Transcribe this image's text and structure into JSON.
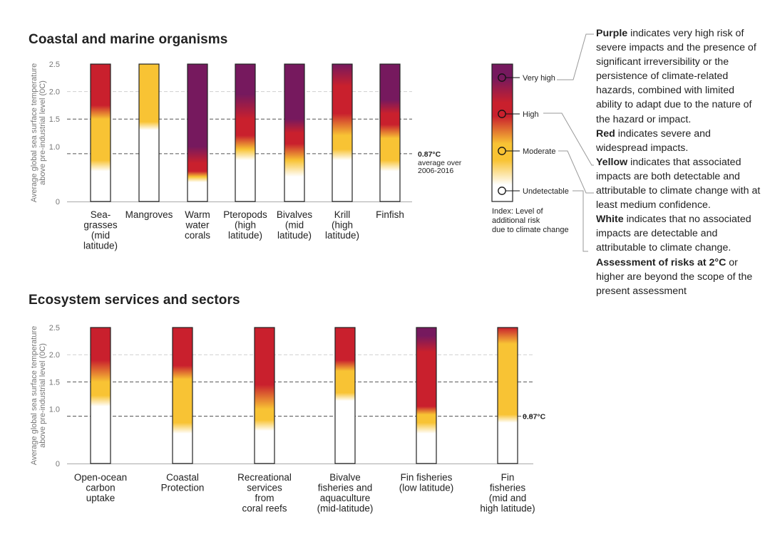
{
  "chart_data": [
    {
      "type": "bar",
      "title": "Coastal and marine organisms",
      "ylabel": [
        "Average global sea surface temperature",
        "above pre-industrial level (0C)"
      ],
      "ylim": [
        0,
        2.5
      ],
      "yticks": [
        "0",
        "1.0",
        "1.5",
        "2.0",
        "2.5"
      ],
      "reference_lines": [
        {
          "y": 0.87,
          "label": "0.87°C",
          "note": [
            "average over",
            "2006-2016"
          ]
        },
        {
          "y": 1.5,
          "label": ""
        },
        {
          "y": 2.0,
          "label": ""
        }
      ],
      "categories": [
        {
          "label": [
            "Sea-",
            "grasses",
            "(mid",
            "latitude)"
          ],
          "stops": [
            [
              0.0,
              "white"
            ],
            [
              0.55,
              "white"
            ],
            [
              0.75,
              "yellow"
            ],
            [
              1.5,
              "yellow"
            ],
            [
              1.75,
              "red"
            ],
            [
              2.5,
              "red"
            ]
          ]
        },
        {
          "label": [
            "Mangroves"
          ],
          "stops": [
            [
              0.0,
              "white"
            ],
            [
              1.3,
              "white"
            ],
            [
              1.45,
              "yellow"
            ],
            [
              2.5,
              "yellow"
            ]
          ]
        },
        {
          "label": [
            "Warm",
            "water",
            "corals"
          ],
          "stops": [
            [
              0.0,
              "white"
            ],
            [
              0.35,
              "white"
            ],
            [
              0.45,
              "yellow"
            ],
            [
              0.55,
              "red"
            ],
            [
              0.7,
              "red"
            ],
            [
              1.0,
              "purple"
            ],
            [
              2.5,
              "purple"
            ]
          ]
        },
        {
          "label": [
            "Pteropods",
            "(high",
            "latitude)"
          ],
          "stops": [
            [
              0.0,
              "white"
            ],
            [
              0.75,
              "white"
            ],
            [
              0.95,
              "yellow"
            ],
            [
              1.2,
              "red"
            ],
            [
              1.5,
              "red"
            ],
            [
              1.95,
              "purple"
            ],
            [
              2.5,
              "purple"
            ]
          ]
        },
        {
          "label": [
            "Bivalves",
            "(mid",
            "latitude)"
          ],
          "stops": [
            [
              0.0,
              "white"
            ],
            [
              0.45,
              "white"
            ],
            [
              0.75,
              "yellow"
            ],
            [
              1.05,
              "red"
            ],
            [
              1.25,
              "red"
            ],
            [
              1.5,
              "purple"
            ],
            [
              2.5,
              "purple"
            ]
          ]
        },
        {
          "label": [
            "Krill",
            "(high",
            "latitude)"
          ],
          "stops": [
            [
              0.0,
              "white"
            ],
            [
              0.75,
              "white"
            ],
            [
              0.95,
              "yellow"
            ],
            [
              1.2,
              "yellow"
            ],
            [
              1.6,
              "red"
            ],
            [
              2.1,
              "red"
            ],
            [
              2.5,
              "purple"
            ]
          ]
        },
        {
          "label": [
            "Finfish"
          ],
          "stops": [
            [
              0.0,
              "white"
            ],
            [
              0.55,
              "white"
            ],
            [
              0.75,
              "yellow"
            ],
            [
              1.15,
              "yellow"
            ],
            [
              1.4,
              "red"
            ],
            [
              1.6,
              "red"
            ],
            [
              1.85,
              "purple"
            ],
            [
              2.5,
              "purple"
            ]
          ]
        }
      ],
      "legend": {
        "levels": [
          "Very high",
          "High",
          "Moderate",
          "Undetectable"
        ],
        "caption": [
          "Index: Level of",
          "additional risk",
          "due to climate change"
        ]
      }
    },
    {
      "type": "bar",
      "title": "Ecosystem services and sectors",
      "ylabel": [
        "Average global sea surface temperature",
        "above pre-industrial level (0C)"
      ],
      "ylim": [
        0,
        2.5
      ],
      "yticks": [
        "0",
        "1.0",
        "1.5",
        "2.0",
        "2.5"
      ],
      "reference_lines": [
        {
          "y": 0.87,
          "label": "0.87°C"
        },
        {
          "y": 1.5,
          "label": ""
        },
        {
          "y": 2.0,
          "label": ""
        }
      ],
      "categories": [
        {
          "label": [
            "Open-ocean",
            "carbon",
            "uptake"
          ],
          "stops": [
            [
              0.0,
              "white"
            ],
            [
              1.05,
              "white"
            ],
            [
              1.25,
              "yellow"
            ],
            [
              1.5,
              "yellow"
            ],
            [
              1.9,
              "red"
            ],
            [
              2.5,
              "red"
            ]
          ]
        },
        {
          "label": [
            "Coastal",
            "Protection"
          ],
          "stops": [
            [
              0.0,
              "white"
            ],
            [
              0.55,
              "white"
            ],
            [
              0.75,
              "yellow"
            ],
            [
              1.55,
              "yellow"
            ],
            [
              1.8,
              "red"
            ],
            [
              2.5,
              "red"
            ]
          ]
        },
        {
          "label": [
            "Recreational",
            "services",
            "from",
            "coral reefs"
          ],
          "stops": [
            [
              0.0,
              "white"
            ],
            [
              0.6,
              "white"
            ],
            [
              0.8,
              "yellow"
            ],
            [
              1.0,
              "yellow"
            ],
            [
              1.45,
              "red"
            ],
            [
              2.5,
              "red"
            ]
          ]
        },
        {
          "label": [
            "Bivalve",
            "fisheries and",
            "aquaculture",
            "(mid-latitude)"
          ],
          "stops": [
            [
              0.0,
              "white"
            ],
            [
              1.15,
              "white"
            ],
            [
              1.3,
              "yellow"
            ],
            [
              1.7,
              "yellow"
            ],
            [
              1.9,
              "red"
            ],
            [
              2.5,
              "red"
            ]
          ]
        },
        {
          "label": [
            "Fin fisheries",
            "(low latitude)"
          ],
          "stops": [
            [
              0.0,
              "white"
            ],
            [
              0.55,
              "white"
            ],
            [
              0.75,
              "yellow"
            ],
            [
              0.9,
              "yellow"
            ],
            [
              1.05,
              "red"
            ],
            [
              2.05,
              "red"
            ],
            [
              2.35,
              "purple"
            ],
            [
              2.5,
              "purple"
            ]
          ]
        },
        {
          "label": [
            "Fin",
            "fisheries",
            "(mid and",
            "high latitude)"
          ],
          "stops": [
            [
              0.0,
              "white"
            ],
            [
              0.75,
              "white"
            ],
            [
              0.9,
              "yellow"
            ],
            [
              2.2,
              "yellow"
            ],
            [
              2.5,
              "red"
            ]
          ]
        }
      ]
    }
  ],
  "colors": {
    "white": "#ffffff",
    "yellow": "#f8c334",
    "red": "#c9202d",
    "purple": "#76195e",
    "axis": "#555555",
    "grid": "#bbbbbb"
  },
  "legend_text": [
    {
      "bold": "Purple",
      "rest": " indicates very high risk of severe impacts and the presence of significant irreversibility or the persistence of climate-related hazards, combined with limited ability to adapt due to the nature of the hazard or impact."
    },
    {
      "bold": "Red",
      "rest": " indicates severe and widespread impacts."
    },
    {
      "bold": "Yellow",
      "rest": " indicates that associated impacts are both detectable and attributable to climate change with at least medium confidence."
    },
    {
      "bold": "White",
      "rest": " indicates that no associated impacts are detectable and attributable to climate change."
    },
    {
      "bold": "Assessment of risks at 2°C",
      "rest": " or higher are beyond the scope of the present assessment"
    }
  ]
}
